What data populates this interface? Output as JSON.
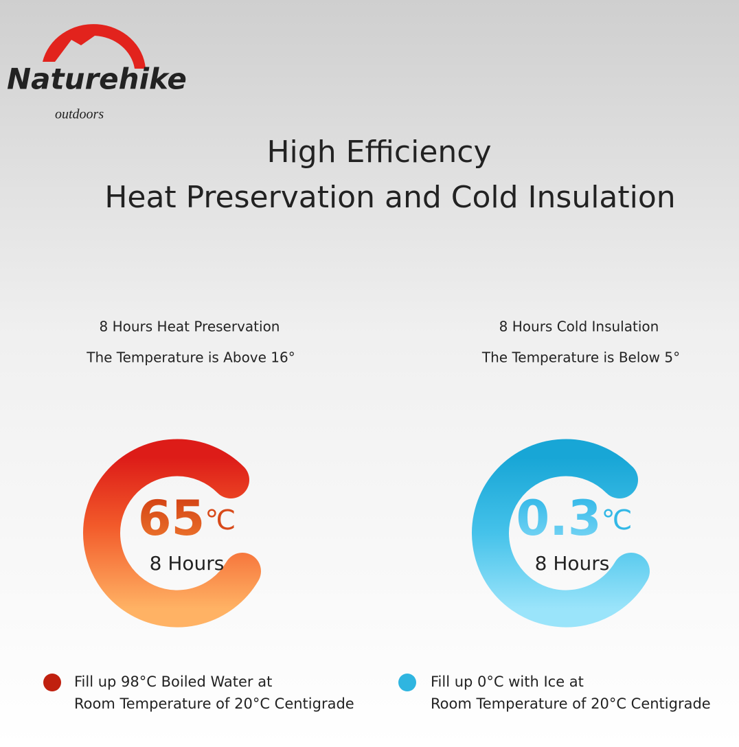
{
  "brand": {
    "name": "Naturehike",
    "tagline": "outdoors"
  },
  "title": {
    "line1": "High Efficiency",
    "line2": "Heat Preservation and Cold Insulation"
  },
  "panels": [
    {
      "heading": "8 Hours Heat Preservation",
      "subheading": "The Temperature is Above 16°",
      "value": "65",
      "unit": "℃",
      "duration": "8 Hours",
      "note": [
        "Fill up 98°C Boiled Water at",
        "Room Temperature of 20°C Centigrade"
      ]
    },
    {
      "heading": "8 Hours Cold Insulation",
      "subheading": "The Temperature is Below 5°",
      "value": "0.3",
      "unit": "℃",
      "duration": "8 Hours",
      "note": [
        "Fill up 0°C with Ice at",
        "Room Temperature of 20°C Centigrade"
      ]
    }
  ]
}
